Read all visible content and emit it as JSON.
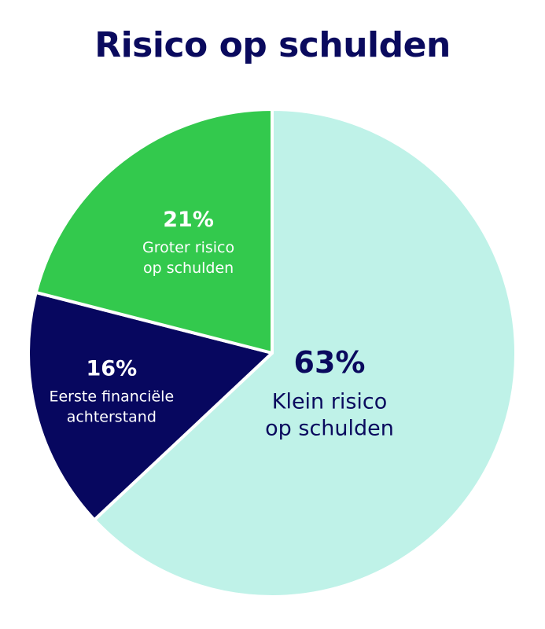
{
  "chart_data": {
    "type": "pie",
    "title": "Risico op schulden",
    "slices": [
      {
        "label_lines": [
          "Klein risico",
          "op schulden"
        ],
        "value": 63,
        "value_label": "63%",
        "color": "#bff2e8",
        "text_color": "#0a0a5e"
      },
      {
        "label_lines": [
          "Eerste financiële",
          "achterstand"
        ],
        "value": 16,
        "value_label": "16%",
        "color": "#07075f",
        "text_color": "#ffffff"
      },
      {
        "label_lines": [
          "Groter risico",
          "op schulden"
        ],
        "value": 21,
        "value_label": "21%",
        "color": "#33c94d",
        "text_color": "#ffffff"
      }
    ],
    "start_angle": "12 o'clock",
    "direction": "clockwise",
    "legend": "none"
  },
  "colors": {
    "title": "#0a0a5e",
    "background": "#ffffff",
    "separator": "#ffffff"
  }
}
